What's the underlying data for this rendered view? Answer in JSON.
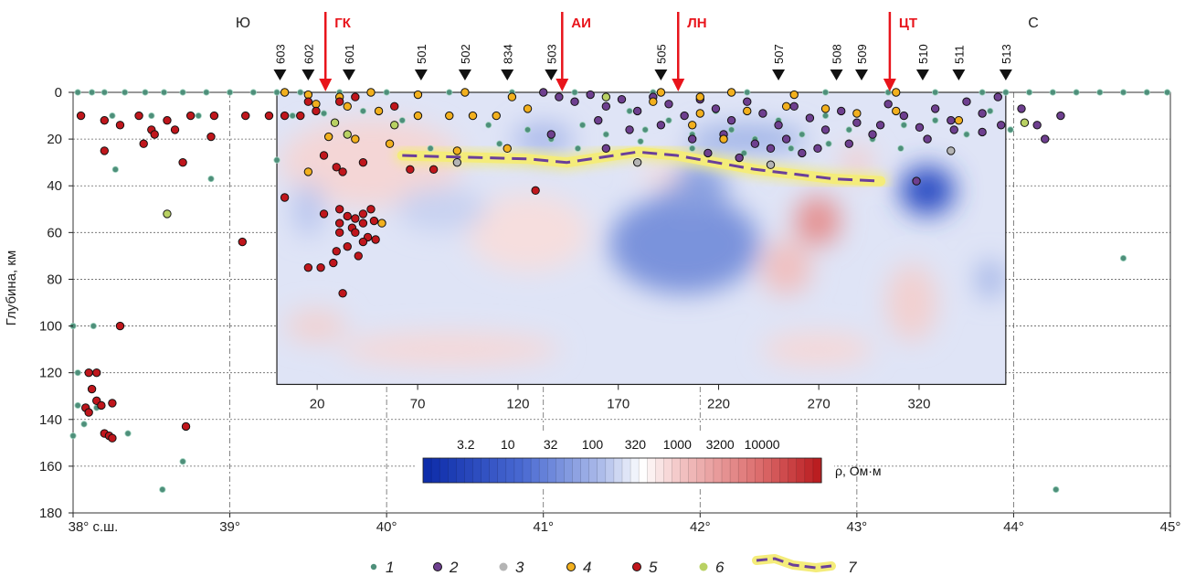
{
  "chart_data": {
    "type": "scatter",
    "ylabel": "Глубина, км",
    "x_axis": {
      "range": [
        38,
        45
      ],
      "ticks": [
        38,
        39,
        40,
        41,
        42,
        43,
        44,
        45
      ],
      "tick_labels": [
        "38° с.ш.",
        "39°",
        "40°",
        "41°",
        "42°",
        "43°",
        "44°",
        "45°"
      ]
    },
    "y_axis": {
      "range": [
        0,
        180
      ],
      "inverted": true,
      "ticks": [
        0,
        20,
        40,
        60,
        80,
        100,
        120,
        140,
        160,
        180
      ],
      "grid": true
    },
    "profile_axis": {
      "ticks": [
        20,
        70,
        120,
        170,
        220,
        270,
        320
      ],
      "tick_lat": [
        39.557,
        40.198,
        40.838,
        41.478,
        42.118,
        42.757,
        43.397
      ]
    },
    "section_box": {
      "lat_range": [
        39.3,
        43.95
      ],
      "depth_range": [
        0,
        125
      ]
    },
    "directions": {
      "south": "Ю",
      "north": "С"
    },
    "stations": [
      {
        "name": "603",
        "lat": 39.32
      },
      {
        "name": "602",
        "lat": 39.5
      },
      {
        "name": "601",
        "lat": 39.76
      },
      {
        "name": "501",
        "lat": 40.22
      },
      {
        "name": "502",
        "lat": 40.5
      },
      {
        "name": "834",
        "lat": 40.77
      },
      {
        "name": "503",
        "lat": 41.05
      },
      {
        "name": "505",
        "lat": 41.75
      },
      {
        "name": "507",
        "lat": 42.5
      },
      {
        "name": "508",
        "lat": 42.87
      },
      {
        "name": "509",
        "lat": 43.03
      },
      {
        "name": "510",
        "lat": 43.42
      },
      {
        "name": "511",
        "lat": 43.65
      },
      {
        "name": "513",
        "lat": 43.95
      }
    ],
    "faults": [
      {
        "name": "ГК",
        "lat": 39.61
      },
      {
        "name": "АИ",
        "lat": 41.12
      },
      {
        "name": "ЛН",
        "lat": 41.86
      },
      {
        "name": "ЦТ",
        "lat": 43.21
      }
    ],
    "colorbar": {
      "label": "ρ, Ом·м",
      "tick_labels": [
        "3.2",
        "10",
        "32",
        "100",
        "320",
        "1000",
        "3200",
        "10000"
      ],
      "tick_values": [
        3.2,
        10,
        32,
        100,
        320,
        1000,
        3200,
        10000
      ],
      "range_log10": [
        0,
        4.7
      ]
    },
    "boundary_line": [
      {
        "lat": 40.1,
        "depth": 27
      },
      {
        "lat": 40.35,
        "depth": 27.5
      },
      {
        "lat": 40.65,
        "depth": 28
      },
      {
        "lat": 40.9,
        "depth": 28.5
      },
      {
        "lat": 41.15,
        "depth": 30
      },
      {
        "lat": 41.35,
        "depth": 28
      },
      {
        "lat": 41.6,
        "depth": 25.5
      },
      {
        "lat": 41.85,
        "depth": 27
      },
      {
        "lat": 42.1,
        "depth": 30
      },
      {
        "lat": 42.35,
        "depth": 33
      },
      {
        "lat": 42.6,
        "depth": 35
      },
      {
        "lat": 42.85,
        "depth": 37
      },
      {
        "lat": 43.15,
        "depth": 38
      }
    ],
    "legend": [
      {
        "label": "1",
        "kind": "dot",
        "color": "#4e8f7a"
      },
      {
        "label": "2",
        "kind": "dot",
        "color": "#6e3f8f"
      },
      {
        "label": "3",
        "kind": "dot",
        "color": "#b4b4b4"
      },
      {
        "label": "4",
        "kind": "dot",
        "color": "#f2b01e"
      },
      {
        "label": "5",
        "kind": "dot",
        "color": "#c0161c"
      },
      {
        "label": "6",
        "kind": "dot",
        "color": "#b9d163"
      },
      {
        "label": "7",
        "kind": "line"
      }
    ],
    "series": [
      {
        "name": "1",
        "color": "#4e8f7a",
        "points": [
          [
            38.03,
            0
          ],
          [
            38.12,
            0
          ],
          [
            38.2,
            0
          ],
          [
            38.33,
            0
          ],
          [
            38.46,
            0
          ],
          [
            38.58,
            0
          ],
          [
            38.7,
            0
          ],
          [
            38.85,
            0
          ],
          [
            39.0,
            0
          ],
          [
            39.15,
            0
          ],
          [
            39.3,
            0
          ],
          [
            39.45,
            0
          ],
          [
            39.7,
            0
          ],
          [
            40.0,
            0
          ],
          [
            40.4,
            0
          ],
          [
            40.8,
            0
          ],
          [
            41.2,
            0
          ],
          [
            41.7,
            0
          ],
          [
            42.3,
            0
          ],
          [
            42.8,
            0
          ],
          [
            43.2,
            0
          ],
          [
            43.5,
            0
          ],
          [
            43.8,
            0
          ],
          [
            43.95,
            0
          ],
          [
            44.1,
            0
          ],
          [
            44.25,
            0
          ],
          [
            44.4,
            0
          ],
          [
            44.55,
            0
          ],
          [
            44.7,
            0
          ],
          [
            44.85,
            0
          ],
          [
            44.98,
            0
          ],
          [
            38.25,
            10
          ],
          [
            38.5,
            10
          ],
          [
            38.8,
            10
          ],
          [
            39.1,
            10
          ],
          [
            39.4,
            10
          ],
          [
            39.6,
            9
          ],
          [
            39.85,
            8
          ],
          [
            40.1,
            12
          ],
          [
            40.4,
            10
          ],
          [
            40.65,
            14
          ],
          [
            40.9,
            16
          ],
          [
            41.05,
            20
          ],
          [
            41.25,
            14
          ],
          [
            41.4,
            18
          ],
          [
            41.55,
            8
          ],
          [
            41.65,
            16
          ],
          [
            41.8,
            12
          ],
          [
            41.95,
            18
          ],
          [
            42.1,
            8
          ],
          [
            42.2,
            16
          ],
          [
            42.35,
            20
          ],
          [
            42.5,
            12
          ],
          [
            42.65,
            18
          ],
          [
            42.8,
            10
          ],
          [
            42.95,
            16
          ],
          [
            43.1,
            20
          ],
          [
            43.3,
            14
          ],
          [
            43.5,
            12
          ],
          [
            43.7,
            18
          ],
          [
            43.85,
            8
          ],
          [
            43.98,
            16
          ],
          [
            38.27,
            33
          ],
          [
            38.88,
            37
          ],
          [
            39.3,
            29
          ],
          [
            40.28,
            24
          ],
          [
            40.72,
            22
          ],
          [
            41.22,
            24
          ],
          [
            41.62,
            21
          ],
          [
            41.95,
            24
          ],
          [
            42.28,
            26
          ],
          [
            42.58,
            24
          ],
          [
            42.82,
            22
          ],
          [
            43.28,
            24
          ],
          [
            38.0,
            100
          ],
          [
            38.13,
            100
          ],
          [
            38.03,
            120
          ],
          [
            38.03,
            134
          ],
          [
            38.15,
            135
          ],
          [
            38.07,
            142
          ],
          [
            38.0,
            147
          ],
          [
            38.35,
            146
          ],
          [
            38.7,
            158
          ],
          [
            38.57,
            170
          ],
          [
            44.7,
            71
          ],
          [
            44.27,
            170
          ]
        ]
      },
      {
        "name": "2",
        "color": "#6e3f8f",
        "points": [
          [
            41.0,
            0
          ],
          [
            41.1,
            2
          ],
          [
            41.2,
            4
          ],
          [
            41.3,
            1
          ],
          [
            41.4,
            6
          ],
          [
            41.5,
            3
          ],
          [
            41.6,
            8
          ],
          [
            41.7,
            2
          ],
          [
            41.8,
            5
          ],
          [
            41.9,
            10
          ],
          [
            42.0,
            3
          ],
          [
            42.1,
            7
          ],
          [
            42.2,
            12
          ],
          [
            42.3,
            4
          ],
          [
            42.4,
            9
          ],
          [
            42.5,
            14
          ],
          [
            42.6,
            6
          ],
          [
            42.7,
            11
          ],
          [
            42.8,
            16
          ],
          [
            42.9,
            8
          ],
          [
            43.0,
            13
          ],
          [
            43.1,
            18
          ],
          [
            43.2,
            5
          ],
          [
            43.3,
            10
          ],
          [
            43.4,
            15
          ],
          [
            43.5,
            7
          ],
          [
            43.6,
            12
          ],
          [
            43.7,
            4
          ],
          [
            43.8,
            9
          ],
          [
            43.9,
            2
          ],
          [
            41.35,
            12
          ],
          [
            41.55,
            16
          ],
          [
            41.75,
            14
          ],
          [
            41.95,
            20
          ],
          [
            42.15,
            18
          ],
          [
            42.35,
            22
          ],
          [
            42.55,
            20
          ],
          [
            42.75,
            24
          ],
          [
            42.95,
            22
          ],
          [
            43.15,
            14
          ],
          [
            43.45,
            20
          ],
          [
            43.62,
            16
          ],
          [
            43.8,
            17
          ],
          [
            43.92,
            14
          ],
          [
            42.05,
            26
          ],
          [
            42.25,
            28
          ],
          [
            42.45,
            24
          ],
          [
            42.65,
            26
          ],
          [
            44.05,
            7
          ],
          [
            44.3,
            10
          ],
          [
            44.15,
            14
          ],
          [
            44.2,
            20
          ],
          [
            43.38,
            38
          ],
          [
            41.4,
            24
          ],
          [
            41.05,
            18
          ]
        ]
      },
      {
        "name": "3",
        "color": "#b4b4b4",
        "points": [
          [
            41.6,
            30
          ],
          [
            42.45,
            31
          ],
          [
            40.45,
            30
          ],
          [
            43.6,
            25
          ]
        ]
      },
      {
        "name": "4",
        "color": "#f2b01e",
        "points": [
          [
            39.35,
            0
          ],
          [
            39.5,
            1
          ],
          [
            39.7,
            2
          ],
          [
            39.9,
            0
          ],
          [
            40.2,
            1
          ],
          [
            40.5,
            0
          ],
          [
            40.8,
            2
          ],
          [
            41.75,
            0
          ],
          [
            42.0,
            2
          ],
          [
            42.2,
            0
          ],
          [
            42.6,
            1
          ],
          [
            43.25,
            0
          ],
          [
            39.55,
            5
          ],
          [
            39.75,
            6
          ],
          [
            39.95,
            8
          ],
          [
            40.2,
            10
          ],
          [
            40.4,
            10
          ],
          [
            40.55,
            10
          ],
          [
            40.7,
            10
          ],
          [
            40.9,
            7
          ],
          [
            41.7,
            4
          ],
          [
            42.0,
            9
          ],
          [
            42.3,
            8
          ],
          [
            42.55,
            6
          ],
          [
            42.8,
            7
          ],
          [
            43.0,
            9
          ],
          [
            43.25,
            8
          ],
          [
            43.65,
            12
          ],
          [
            41.95,
            14
          ],
          [
            42.15,
            20
          ],
          [
            39.63,
            19
          ],
          [
            39.8,
            20
          ],
          [
            40.02,
            22
          ],
          [
            40.45,
            25
          ],
          [
            40.77,
            24
          ],
          [
            39.5,
            34
          ],
          [
            39.97,
            56
          ]
        ]
      },
      {
        "name": "5",
        "color": "#c0161c",
        "points": [
          [
            38.05,
            10
          ],
          [
            38.2,
            12
          ],
          [
            38.3,
            14
          ],
          [
            38.42,
            10
          ],
          [
            38.5,
            16
          ],
          [
            38.6,
            12
          ],
          [
            38.75,
            10
          ],
          [
            38.9,
            10
          ],
          [
            39.1,
            10
          ],
          [
            39.25,
            10
          ],
          [
            39.35,
            10
          ],
          [
            39.45,
            10
          ],
          [
            39.5,
            4
          ],
          [
            39.55,
            8
          ],
          [
            39.7,
            4
          ],
          [
            39.8,
            2
          ],
          [
            40.05,
            6
          ],
          [
            38.2,
            25
          ],
          [
            38.52,
            18
          ],
          [
            38.45,
            22
          ],
          [
            38.65,
            16
          ],
          [
            38.88,
            19
          ],
          [
            38.7,
            30
          ],
          [
            39.6,
            27
          ],
          [
            39.68,
            32
          ],
          [
            39.72,
            34
          ],
          [
            39.85,
            30
          ],
          [
            40.15,
            33
          ],
          [
            40.3,
            33
          ],
          [
            40.95,
            42
          ],
          [
            39.35,
            45
          ],
          [
            39.6,
            52
          ],
          [
            39.7,
            50
          ],
          [
            39.75,
            53
          ],
          [
            39.8,
            54
          ],
          [
            39.85,
            52
          ],
          [
            39.9,
            50
          ],
          [
            39.7,
            56
          ],
          [
            39.78,
            58
          ],
          [
            39.85,
            56
          ],
          [
            39.92,
            55
          ],
          [
            39.7,
            60
          ],
          [
            39.8,
            60
          ],
          [
            39.88,
            62
          ],
          [
            39.93,
            63
          ],
          [
            39.85,
            64
          ],
          [
            39.68,
            68
          ],
          [
            39.75,
            66
          ],
          [
            39.82,
            70
          ],
          [
            39.5,
            75
          ],
          [
            39.58,
            75
          ],
          [
            39.66,
            73
          ],
          [
            39.72,
            86
          ],
          [
            39.08,
            64
          ],
          [
            38.3,
            100
          ],
          [
            38.1,
            120
          ],
          [
            38.15,
            120
          ],
          [
            38.12,
            127
          ],
          [
            38.15,
            132
          ],
          [
            38.08,
            135
          ],
          [
            38.18,
            134
          ],
          [
            38.1,
            137
          ],
          [
            38.25,
            133
          ],
          [
            38.2,
            146
          ],
          [
            38.23,
            147
          ],
          [
            38.25,
            148
          ],
          [
            38.72,
            143
          ]
        ]
      },
      {
        "name": "6",
        "color": "#b9d163",
        "points": [
          [
            38.6,
            52
          ],
          [
            39.75,
            18
          ],
          [
            39.67,
            13
          ],
          [
            40.05,
            14
          ],
          [
            44.07,
            13
          ],
          [
            41.4,
            2
          ]
        ]
      }
    ]
  },
  "colors": {
    "ink": "#222222",
    "fault": "#e8141b",
    "boundary": "#6a3f9a",
    "halo": "#f4ec7a",
    "low_rho": "#1f3fb6",
    "high_rho": "#c21c1c"
  }
}
